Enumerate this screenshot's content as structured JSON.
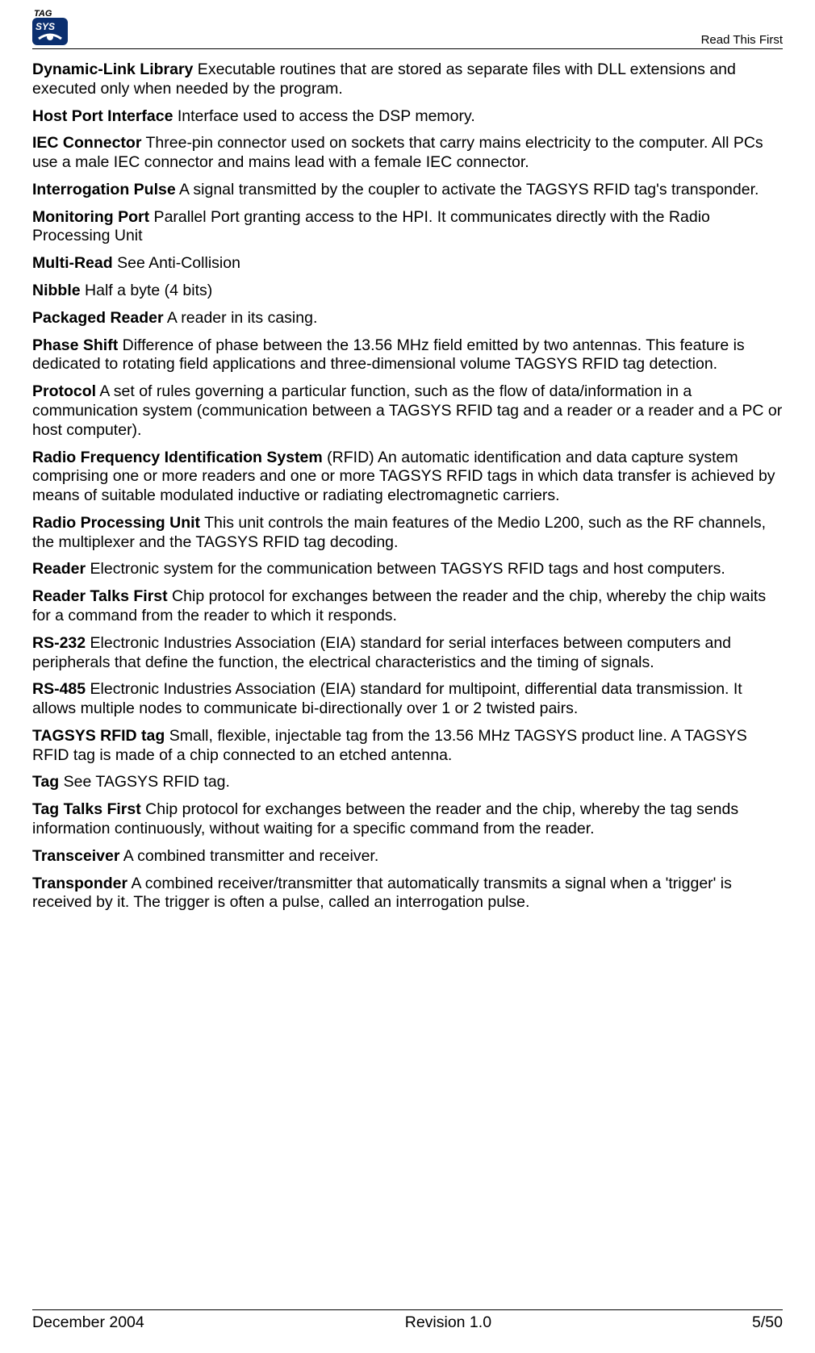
{
  "header": {
    "section_title": "Read This First"
  },
  "glossary": [
    {
      "term": "Dynamic-Link Library",
      "def": " Executable routines that are stored as separate files with DLL extensions and executed only when needed by the program."
    },
    {
      "term": "Host Port Interface",
      "def": " Interface used to access the DSP memory."
    },
    {
      "term": "IEC Connector",
      "def": " Three-pin connector used on sockets that carry mains electricity to the computer. All PCs use a male IEC connector and mains lead with a female IEC connector."
    },
    {
      "term": "Interrogation Pulse",
      "def": " A signal transmitted by the coupler to activate the TAGSYS RFID tag's transponder."
    },
    {
      "term": "Monitoring Port",
      "def": " Parallel Port granting access to the HPI. It communicates directly with the Radio Processing Unit"
    },
    {
      "term": "Multi-Read",
      "def": " See Anti-Collision"
    },
    {
      "term": "Nibble",
      "def": " Half a byte (4 bits)"
    },
    {
      "term": "Packaged Reader",
      "def": " A reader in its casing."
    },
    {
      "term": "Phase Shift",
      "def": " Difference of phase between the 13.56 MHz field emitted by two antennas. This feature is dedicated to rotating field applications and three-dimensional volume TAGSYS RFID tag detection."
    },
    {
      "term": "Protocol",
      "def": " A set of rules governing a particular function, such as the flow of data/information in a communication system (communication between a TAGSYS RFID tag and a reader or a reader and a PC or host computer)."
    },
    {
      "term": "Radio Frequency Identification System",
      "def": " (RFID) An automatic identification and data capture system comprising one or more readers and one or more TAGSYS RFID tags in which data transfer is achieved by means of suitable modulated inductive or radiating electromagnetic carriers."
    },
    {
      "term": "Radio Processing Unit",
      "def": " This unit controls the main features of the Medio L200, such as the RF channels, the multiplexer and the TAGSYS RFID tag decoding."
    },
    {
      "term": "Reader",
      "def": " Electronic system for the communication between TAGSYS RFID tags and host computers."
    },
    {
      "term": "Reader Talks First",
      "def": " Chip protocol for exchanges between the reader and the chip, whereby the chip waits for a command from the reader to which it responds."
    },
    {
      "term": "RS-232",
      "def": " Electronic Industries Association (EIA) standard for serial interfaces between computers and peripherals that define the function, the electrical characteristics and the timing of signals."
    },
    {
      "term": "RS-485",
      "def": " Electronic Industries Association (EIA) standard for multipoint, differential data transmission. It allows multiple nodes to communicate bi-directionally over 1 or 2 twisted pairs."
    },
    {
      "term": "TAGSYS RFID tag",
      "def": " Small, flexible, injectable tag from the 13.56 MHz TAGSYS product line. A TAGSYS RFID tag is made of a chip connected to an etched antenna."
    },
    {
      "term": "Tag",
      "def": " See TAGSYS RFID tag."
    },
    {
      "term": "Tag Talks First",
      "def": " Chip protocol for exchanges between the reader and the chip, whereby the tag sends information continuously, without waiting for a specific command from the reader."
    },
    {
      "term": "Transceiver",
      "def": " A combined transmitter and receiver."
    },
    {
      "term": "Transponder",
      "def": " A combined receiver/transmitter that automatically transmits a signal when a 'trigger' is received by it. The trigger is often a pulse, called an interrogation pulse."
    }
  ],
  "footer": {
    "date": "December 2004",
    "revision": "Revision 1.0",
    "page": "5/50"
  },
  "logo": {
    "text_top": "TAG",
    "text_mid": "SYS",
    "bg_color": "#0b2f6f",
    "text_color": "#ffffff"
  }
}
